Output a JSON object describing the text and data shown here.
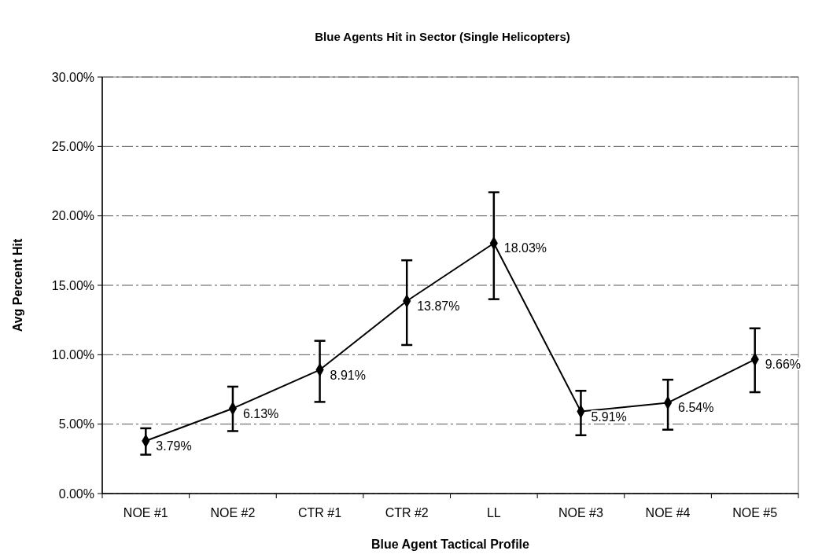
{
  "chart_data": {
    "type": "line",
    "title": "Blue Agents Hit in Sector (Single Helicopters)",
    "xlabel": "Blue Agent Tactical Profile",
    "ylabel": "Avg Percent Hit",
    "categories": [
      "NOE #1",
      "NOE #2",
      "CTR #1",
      "CTR #2",
      "LL",
      "NOE #3",
      "NOE #4",
      "NOE #5"
    ],
    "series": [
      {
        "color": "#000000",
        "values": [
          3.79,
          6.13,
          8.91,
          13.87,
          18.03,
          5.91,
          6.54,
          9.66
        ],
        "value_labels": [
          "3.79%",
          "6.13%",
          "8.91%",
          "13.87%",
          "18.03%",
          "5.91%",
          "6.54%",
          "9.66%"
        ],
        "errors": [
          [
            2.8,
            4.7
          ],
          [
            4.5,
            7.7
          ],
          [
            6.6,
            11.0
          ],
          [
            10.7,
            16.8
          ],
          [
            14.0,
            21.7
          ],
          [
            4.2,
            7.4
          ],
          [
            4.6,
            8.2
          ],
          [
            7.3,
            11.9
          ]
        ]
      }
    ],
    "ylim": [
      0,
      30
    ],
    "yticks": [
      {
        "value": 0,
        "label": "0.00%"
      },
      {
        "value": 5,
        "label": "5.00%"
      },
      {
        "value": 10,
        "label": "10.00%"
      },
      {
        "value": 15,
        "label": "15.00%"
      },
      {
        "value": 20,
        "label": "20.00%"
      },
      {
        "value": 25,
        "label": "25.00%"
      },
      {
        "value": 30,
        "label": "30.00%"
      }
    ],
    "grid": "y",
    "marker": "diamond",
    "line_style": "solid"
  }
}
